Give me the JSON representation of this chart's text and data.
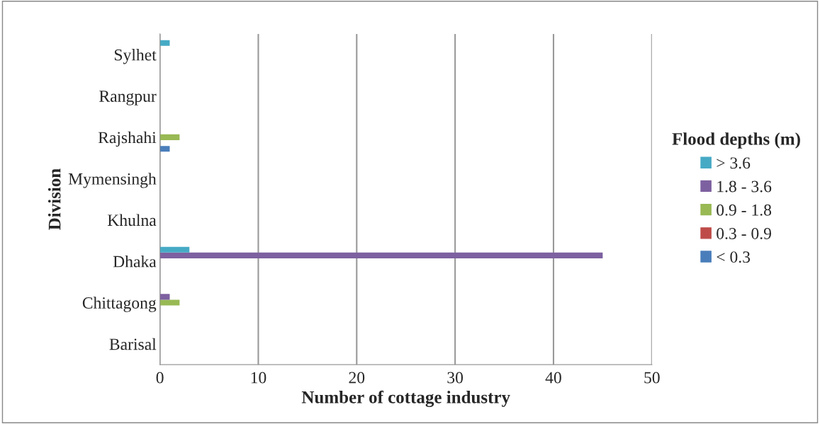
{
  "chart_data": {
    "type": "bar",
    "orientation": "horizontal",
    "xlabel": "Number of cottage industry",
    "ylabel": "Division",
    "legend_title": "Flood depths (m)",
    "categories": [
      "Sylhet",
      "Rangpur",
      "Rajshahi",
      "Mymensingh",
      "Khulna",
      "Dhaka",
      "Chittagong",
      "Barisal"
    ],
    "series": [
      {
        "name": "< 0.3",
        "color": "#4a7ebb",
        "values": [
          0,
          0,
          1,
          0,
          0,
          0,
          0,
          0
        ]
      },
      {
        "name": "0.3 - 0.9",
        "color": "#be4b48",
        "values": [
          0,
          0,
          0,
          0,
          0,
          0,
          0,
          0
        ]
      },
      {
        "name": "0.9 - 1.8",
        "color": "#98b954",
        "values": [
          0,
          0,
          2,
          0,
          0,
          0,
          2,
          0
        ]
      },
      {
        "name": "1.8 - 3.6",
        "color": "#7d60a0",
        "values": [
          0,
          0,
          0,
          0,
          0,
          45,
          1,
          0
        ]
      },
      {
        "name": "> 3.6",
        "color": "#46aac5",
        "values": [
          1,
          0,
          0,
          0,
          0,
          3,
          0,
          0
        ]
      }
    ],
    "xlim": [
      0,
      50
    ],
    "xticks": [
      0,
      10,
      20,
      30,
      40,
      50
    ],
    "grid": "x",
    "legend": "right"
  }
}
